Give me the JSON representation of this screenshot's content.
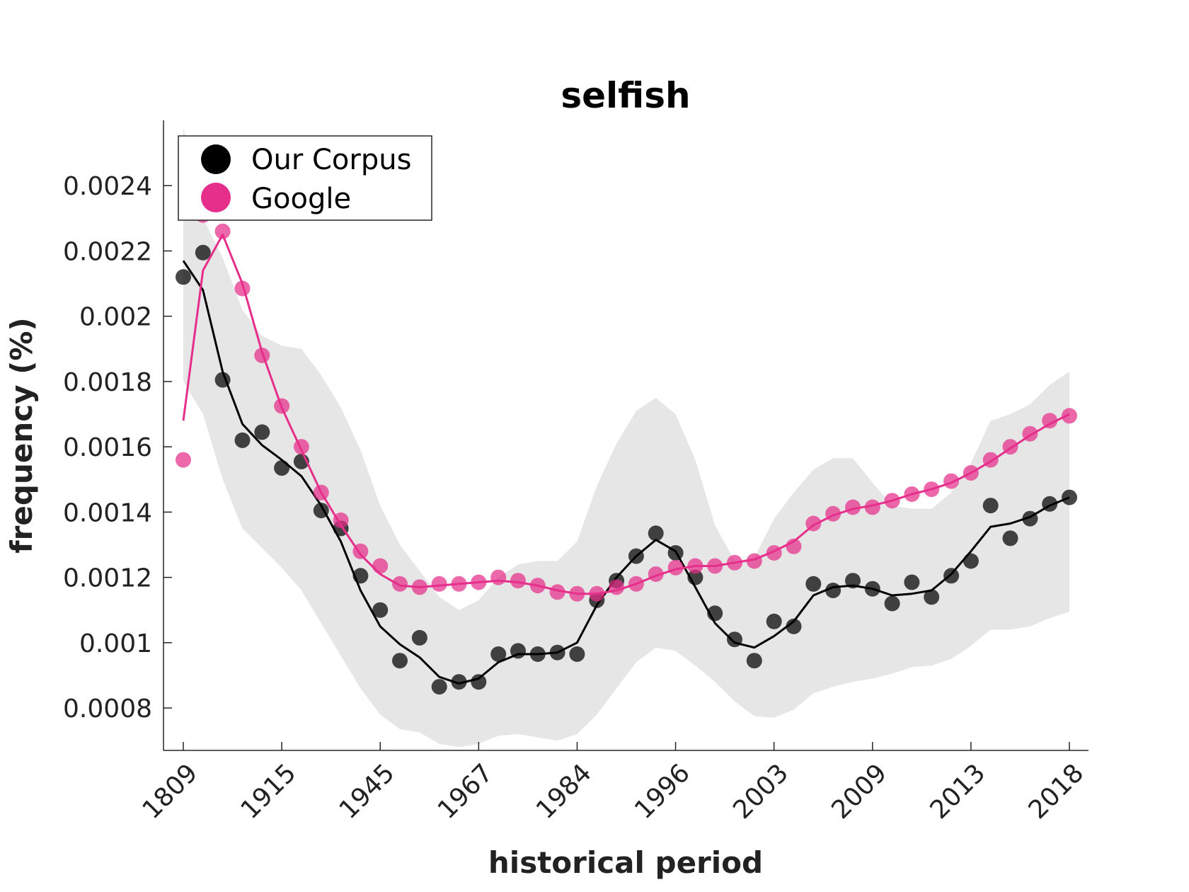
{
  "chart_data": {
    "type": "line",
    "title": "selfish",
    "xlabel": "historical period",
    "ylabel": "frequency (%)",
    "x_tick_labels": [
      "1809",
      "1915",
      "1945",
      "1967",
      "1984",
      "1996",
      "2003",
      "2009",
      "2013",
      "2018"
    ],
    "x_tick_indices": [
      0,
      5,
      10,
      15,
      20,
      25,
      30,
      35,
      40,
      45
    ],
    "y_ticks": [
      0.0008,
      0.001,
      0.0012,
      0.0014,
      0.0016,
      0.0018,
      0.002,
      0.0022,
      0.0024
    ],
    "y_tick_labels": [
      "0.0008",
      "0.001",
      "0.0012",
      "0.0014",
      "0.0016",
      "0.0018",
      "0.002",
      "0.0022",
      "0.0024"
    ],
    "xlim": [
      -1,
      46
    ],
    "ylim": [
      0.00067,
      0.0026
    ],
    "legend_position": "top-left",
    "series": [
      {
        "name": "Our Corpus",
        "color": "#000000",
        "points": [
          0.00212,
          0.002195,
          0.001805,
          0.00162,
          0.001645,
          0.001535,
          0.001555,
          0.001405,
          0.00135,
          0.001205,
          0.0011,
          0.000945,
          0.001015,
          0.000865,
          0.00088,
          0.00088,
          0.000965,
          0.000975,
          0.000965,
          0.00097,
          0.000965,
          0.00113,
          0.00119,
          0.001265,
          0.001335,
          0.001275,
          0.0012,
          0.00109,
          0.00101,
          0.000945,
          0.001065,
          0.00105,
          0.00118,
          0.00116,
          0.00119,
          0.001165,
          0.00112,
          0.001185,
          0.00114,
          0.001205,
          0.00125,
          0.00142,
          0.00132,
          0.00138,
          0.001425,
          0.001445
        ],
        "smooth": [
          0.00217,
          0.00208,
          0.00183,
          0.00167,
          0.001605,
          0.00156,
          0.00151,
          0.00142,
          0.00131,
          0.00116,
          0.00105,
          0.000995,
          0.000955,
          0.000895,
          0.000875,
          0.00089,
          0.00094,
          0.000965,
          0.000965,
          0.00097,
          0.001,
          0.001115,
          0.0012,
          0.001265,
          0.001315,
          0.00128,
          0.00117,
          0.00106,
          0.001,
          0.000985,
          0.00102,
          0.001065,
          0.001145,
          0.00117,
          0.001175,
          0.001165,
          0.001145,
          0.00115,
          0.00116,
          0.00121,
          0.00128,
          0.001355,
          0.001365,
          0.001385,
          0.00142,
          0.001445
        ],
        "band_upper": [
          0.00258,
          0.0023,
          0.00218,
          0.00202,
          0.00194,
          0.00191,
          0.0019,
          0.00182,
          0.00172,
          0.00159,
          0.00142,
          0.0013,
          0.00122,
          0.00114,
          0.0011,
          0.00113,
          0.0012,
          0.00124,
          0.00125,
          0.00125,
          0.00131,
          0.00148,
          0.00161,
          0.00171,
          0.00175,
          0.0017,
          0.00156,
          0.00136,
          0.00125,
          0.00126,
          0.00138,
          0.00146,
          0.00153,
          0.001565,
          0.001565,
          0.00149,
          0.00142,
          0.00141,
          0.00141,
          0.00146,
          0.00155,
          0.00168,
          0.0017,
          0.00173,
          0.00179,
          0.00183
        ],
        "band_lower": [
          0.0018,
          0.0017,
          0.0015,
          0.00135,
          0.00129,
          0.00123,
          0.00116,
          0.00106,
          0.00096,
          0.00086,
          0.00078,
          0.000735,
          0.000725,
          0.00069,
          0.00068,
          0.00069,
          0.000715,
          0.00072,
          0.00071,
          0.0007,
          0.00072,
          0.00078,
          0.00086,
          0.00094,
          0.000985,
          0.000975,
          0.00093,
          0.00088,
          0.00082,
          0.000775,
          0.00077,
          0.000795,
          0.000845,
          0.000865,
          0.00088,
          0.00089,
          0.000905,
          0.000925,
          0.00093,
          0.00095,
          0.00099,
          0.00104,
          0.00104,
          0.00105,
          0.001075,
          0.001095
        ]
      },
      {
        "name": "Google",
        "color": "#e62e8b",
        "points": [
          0.00156,
          0.00231,
          0.00226,
          0.002085,
          0.00188,
          0.001725,
          0.0016,
          0.00146,
          0.001375,
          0.00128,
          0.001235,
          0.00118,
          0.00117,
          0.00118,
          0.00118,
          0.001185,
          0.0012,
          0.00119,
          0.001175,
          0.001155,
          0.00115,
          0.00115,
          0.00117,
          0.00118,
          0.00121,
          0.00123,
          0.001235,
          0.001235,
          0.001245,
          0.00125,
          0.001275,
          0.001295,
          0.001365,
          0.001395,
          0.001415,
          0.001415,
          0.001435,
          0.001455,
          0.00147,
          0.001495,
          0.00152,
          0.00156,
          0.0016,
          0.00164,
          0.00168,
          0.001695
        ],
        "smooth": [
          0.00168,
          0.00214,
          0.00225,
          0.0021,
          0.00189,
          0.00172,
          0.00159,
          0.00146,
          0.00136,
          0.00127,
          0.00121,
          0.001175,
          0.00117,
          0.001175,
          0.00118,
          0.001185,
          0.00119,
          0.001185,
          0.001175,
          0.00116,
          0.00115,
          0.00115,
          0.00116,
          0.00118,
          0.001205,
          0.001225,
          0.001235,
          0.001235,
          0.001245,
          0.001255,
          0.00128,
          0.00131,
          0.00136,
          0.00139,
          0.00141,
          0.00142,
          0.001435,
          0.001455,
          0.00147,
          0.00149,
          0.00152,
          0.001555,
          0.001595,
          0.001635,
          0.00167,
          0.0017
        ]
      }
    ]
  }
}
